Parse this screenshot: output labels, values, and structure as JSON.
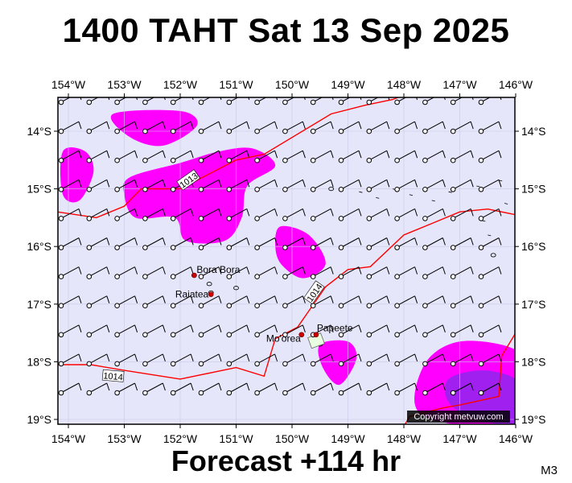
{
  "title": "1400 TAHT Sat 13 Sep 2025",
  "footer": "Forecast +114 hr",
  "model_tag": "M3",
  "copyright": "Copyright metvuw.com",
  "colors": {
    "background": "#e6e6fa",
    "isobar": "#ff0000",
    "wind_light": "#ff00ff",
    "wind_strong": "#a020f0",
    "land_marker": "#cc0000",
    "frame": "#000000"
  },
  "axes": {
    "lon_labels": [
      "154°W",
      "153°W",
      "152°W",
      "151°W",
      "150°W",
      "149°W",
      "148°W",
      "147°W",
      "146°W"
    ],
    "lat_labels": [
      "14°S",
      "15°S",
      "16°S",
      "17°S",
      "18°S",
      "19°S"
    ]
  },
  "places": [
    {
      "name": "Bora Bora",
      "lon": -151.75,
      "lat": -16.5
    },
    {
      "name": "Raiatea",
      "lon": -151.45,
      "lat": -16.83
    },
    {
      "name": "Mo'orea",
      "lon": -149.83,
      "lat": -17.53
    },
    {
      "name": "Papeete",
      "lon": -149.57,
      "lat": -17.53
    }
  ],
  "isobar_labels": [
    {
      "text": "1013",
      "lon": -151.85,
      "lat": -14.85
    },
    {
      "text": "1014",
      "lon": -149.6,
      "lat": -16.8
    },
    {
      "text": "1014",
      "lon": -153.2,
      "lat": -18.25
    }
  ],
  "isobars": [
    {
      "value": 1013,
      "points": [
        [
          -154.2,
          -15.4
        ],
        [
          -153.5,
          -15.5
        ],
        [
          -153.0,
          -15.3
        ],
        [
          -152.7,
          -15.0
        ],
        [
          -152.0,
          -15.0
        ],
        [
          -151.8,
          -14.9
        ],
        [
          -151.0,
          -14.5
        ],
        [
          -150.5,
          -14.4
        ],
        [
          -149.3,
          -13.7
        ],
        [
          -148.7,
          -13.55
        ],
        [
          -148.2,
          -13.45
        ],
        [
          -147.8,
          -13.3
        ]
      ]
    },
    {
      "value": 1014,
      "points": [
        [
          -154.2,
          -18.05
        ],
        [
          -153.6,
          -18.05
        ],
        [
          -153.0,
          -18.15
        ],
        [
          -152.0,
          -18.3
        ],
        [
          -151.0,
          -18.1
        ],
        [
          -150.5,
          -18.25
        ],
        [
          -150.3,
          -17.6
        ],
        [
          -149.9,
          -17.4
        ],
        [
          -149.4,
          -16.7
        ],
        [
          -149.0,
          -16.4
        ],
        [
          -148.6,
          -16.35
        ],
        [
          -148.0,
          -15.8
        ],
        [
          -147.5,
          -15.6
        ],
        [
          -147.0,
          -15.4
        ],
        [
          -146.5,
          -15.35
        ],
        [
          -146.0,
          -15.45
        ],
        [
          -145.8,
          -15.5
        ]
      ]
    },
    {
      "value": 1014,
      "points": [
        [
          -146.0,
          -17.5
        ],
        [
          -146.25,
          -17.9
        ],
        [
          -146.3,
          -18.6
        ],
        [
          -147.0,
          -18.75
        ],
        [
          -147.3,
          -18.8
        ],
        [
          -147.9,
          -18.95
        ],
        [
          -148.1,
          -19.3
        ]
      ]
    }
  ],
  "wind_regions": [
    {
      "level": "light",
      "points": [
        [
          -153.2,
          -13.7
        ],
        [
          -152.0,
          -13.65
        ],
        [
          -151.7,
          -13.9
        ],
        [
          -152.3,
          -14.25
        ],
        [
          -152.9,
          -14.1
        ]
      ]
    },
    {
      "level": "light",
      "points": [
        [
          -154.1,
          -14.35
        ],
        [
          -153.7,
          -14.35
        ],
        [
          -153.55,
          -14.7
        ],
        [
          -153.8,
          -15.2
        ],
        [
          -154.1,
          -15.1
        ]
      ]
    },
    {
      "level": "light",
      "points": [
        [
          -152.9,
          -14.8
        ],
        [
          -152.0,
          -14.55
        ],
        [
          -151.3,
          -14.35
        ],
        [
          -150.7,
          -14.3
        ],
        [
          -150.3,
          -14.6
        ],
        [
          -150.8,
          -14.95
        ],
        [
          -150.9,
          -15.5
        ],
        [
          -151.2,
          -15.9
        ],
        [
          -151.9,
          -15.9
        ],
        [
          -152.1,
          -15.5
        ],
        [
          -152.8,
          -15.5
        ],
        [
          -153.0,
          -15.1
        ]
      ]
    },
    {
      "level": "light",
      "points": [
        [
          -150.2,
          -15.65
        ],
        [
          -149.7,
          -15.8
        ],
        [
          -149.4,
          -16.3
        ],
        [
          -149.8,
          -16.55
        ],
        [
          -150.2,
          -16.3
        ],
        [
          -150.3,
          -15.95
        ]
      ]
    },
    {
      "level": "light",
      "points": [
        [
          -149.5,
          -17.7
        ],
        [
          -149.0,
          -17.65
        ],
        [
          -148.85,
          -17.95
        ],
        [
          -149.15,
          -18.4
        ],
        [
          -149.45,
          -18.1
        ]
      ]
    },
    {
      "level": "light",
      "points": [
        [
          -147.6,
          -18.0
        ],
        [
          -147.0,
          -17.65
        ],
        [
          -146.1,
          -17.75
        ],
        [
          -145.8,
          -18.1
        ],
        [
          -145.8,
          -19.1
        ],
        [
          -147.3,
          -19.05
        ],
        [
          -147.8,
          -18.75
        ]
      ]
    },
    {
      "level": "strong",
      "points": [
        [
          -147.2,
          -18.3
        ],
        [
          -146.6,
          -18.15
        ],
        [
          -146.0,
          -18.3
        ],
        [
          -145.8,
          -18.7
        ],
        [
          -145.8,
          -19.1
        ],
        [
          -146.7,
          -19.0
        ],
        [
          -147.2,
          -18.7
        ]
      ]
    }
  ]
}
